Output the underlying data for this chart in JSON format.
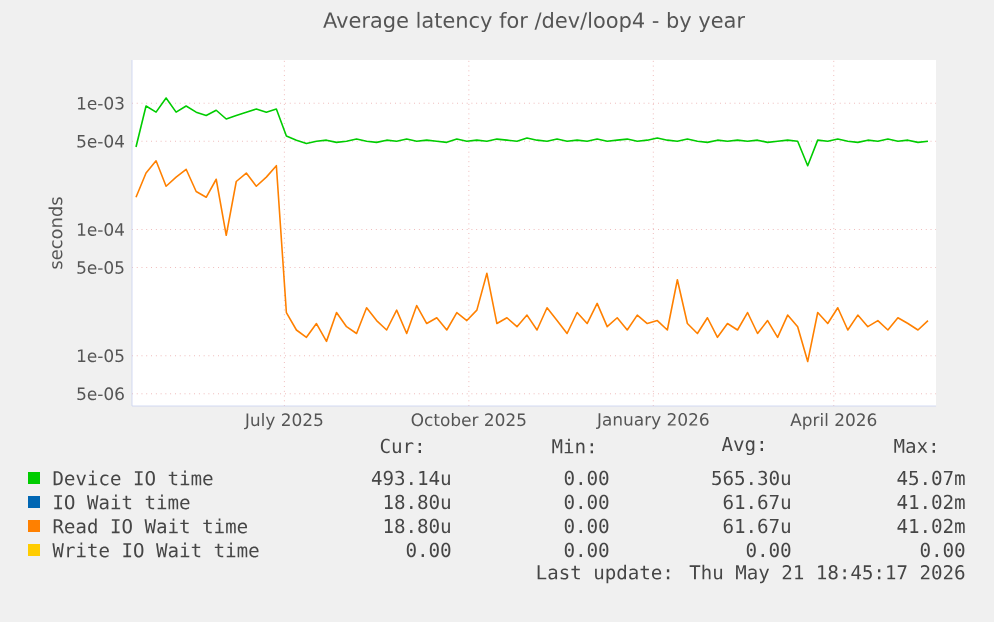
{
  "chart_data": {
    "type": "line",
    "title": "Average latency for /dev/loop4 - by year",
    "ylabel": "seconds",
    "log": "y",
    "grid": true,
    "legend": "bottom",
    "marker": "none",
    "line_style": "solid",
    "xlim": [
      "2025-04-16",
      "2026-05-22"
    ],
    "ylim": [
      4e-06,
      0.0022
    ],
    "xticks": [
      {
        "value": "2025-07-01",
        "label": "July 2025"
      },
      {
        "value": "2025-10-01",
        "label": "October 2025"
      },
      {
        "value": "2026-01-01",
        "label": "January 2026"
      },
      {
        "value": "2026-04-01",
        "label": "April 2026"
      }
    ],
    "yticks": [
      {
        "value": 5e-06,
        "label": "5e-06"
      },
      {
        "value": 1e-05,
        "label": "1e-05"
      },
      {
        "value": 5e-05,
        "label": "5e-05"
      },
      {
        "value": 0.0001,
        "label": "1e-04"
      },
      {
        "value": 0.0005,
        "label": "5e-04"
      },
      {
        "value": 0.001,
        "label": "1e-03"
      }
    ],
    "x": [
      "2025-04-18",
      "2025-04-23",
      "2025-04-28",
      "2025-05-03",
      "2025-05-08",
      "2025-05-13",
      "2025-05-18",
      "2025-05-23",
      "2025-05-28",
      "2025-06-02",
      "2025-06-07",
      "2025-06-12",
      "2025-06-17",
      "2025-06-22",
      "2025-06-27",
      "2025-07-02",
      "2025-07-07",
      "2025-07-12",
      "2025-07-17",
      "2025-07-22",
      "2025-07-27",
      "2025-08-01",
      "2025-08-06",
      "2025-08-11",
      "2025-08-16",
      "2025-08-21",
      "2025-08-26",
      "2025-08-31",
      "2025-09-05",
      "2025-09-10",
      "2025-09-15",
      "2025-09-20",
      "2025-09-25",
      "2025-09-30",
      "2025-10-05",
      "2025-10-10",
      "2025-10-15",
      "2025-10-20",
      "2025-10-25",
      "2025-10-30",
      "2025-11-04",
      "2025-11-09",
      "2025-11-14",
      "2025-11-19",
      "2025-11-24",
      "2025-11-29",
      "2025-12-04",
      "2025-12-09",
      "2025-12-14",
      "2025-12-19",
      "2025-12-24",
      "2025-12-29",
      "2026-01-03",
      "2026-01-08",
      "2026-01-13",
      "2026-01-18",
      "2026-01-23",
      "2026-01-28",
      "2026-02-02",
      "2026-02-07",
      "2026-02-12",
      "2026-02-17",
      "2026-02-22",
      "2026-02-27",
      "2026-03-04",
      "2026-03-09",
      "2026-03-14",
      "2026-03-19",
      "2026-03-24",
      "2026-03-29",
      "2026-04-03",
      "2026-04-08",
      "2026-04-13",
      "2026-04-18",
      "2026-04-23",
      "2026-04-28",
      "2026-05-03",
      "2026-05-08",
      "2026-05-13",
      "2026-05-18"
    ],
    "series": [
      {
        "name": "Device IO time",
        "color": "#00cc00",
        "values": [
          0.00045,
          0.00095,
          0.00085,
          0.0011,
          0.00085,
          0.00095,
          0.00085,
          0.0008,
          0.00088,
          0.00075,
          0.0008,
          0.00085,
          0.0009,
          0.00085,
          0.0009,
          0.00055,
          0.00051,
          0.00048,
          0.0005,
          0.00051,
          0.00049,
          0.0005,
          0.00052,
          0.0005,
          0.00049,
          0.00051,
          0.0005,
          0.00052,
          0.0005,
          0.00051,
          0.0005,
          0.00049,
          0.00052,
          0.0005,
          0.00051,
          0.0005,
          0.00052,
          0.00051,
          0.0005,
          0.00053,
          0.00051,
          0.0005,
          0.00052,
          0.0005,
          0.00051,
          0.0005,
          0.00052,
          0.0005,
          0.00051,
          0.00052,
          0.0005,
          0.00051,
          0.00053,
          0.00051,
          0.0005,
          0.00052,
          0.0005,
          0.00049,
          0.00051,
          0.0005,
          0.00051,
          0.0005,
          0.00051,
          0.00049,
          0.0005,
          0.00051,
          0.0005,
          0.00032,
          0.00051,
          0.0005,
          0.00052,
          0.0005,
          0.00049,
          0.00051,
          0.0005,
          0.00052,
          0.0005,
          0.00051,
          0.00049,
          0.0005
        ]
      },
      {
        "name": "IO Wait time",
        "color": "#0066b3",
        "values": [
          null,
          null,
          null,
          null,
          null,
          null,
          null,
          null,
          null,
          null,
          null,
          null,
          null,
          null,
          null,
          null,
          null,
          null,
          null,
          null,
          null,
          null,
          null,
          null,
          null,
          null,
          null,
          null,
          null,
          null,
          null,
          null,
          null,
          null,
          null,
          null,
          null,
          null,
          null,
          null,
          null,
          null,
          null,
          null,
          null,
          null,
          null,
          null,
          null,
          null,
          null,
          null,
          null,
          null,
          null,
          null,
          null,
          null,
          null,
          null,
          null,
          null,
          null,
          null,
          null,
          null,
          null,
          null,
          null,
          null,
          null,
          null,
          null,
          null,
          null,
          null,
          null,
          null,
          null,
          null
        ]
      },
      {
        "name": "Read IO Wait time",
        "color": "#ff8000",
        "values": [
          0.00018,
          0.00028,
          0.00035,
          0.00022,
          0.00026,
          0.0003,
          0.0002,
          0.00018,
          0.00025,
          9e-05,
          0.00024,
          0.00028,
          0.00022,
          0.00026,
          0.00032,
          2.2e-05,
          1.6e-05,
          1.4e-05,
          1.8e-05,
          1.3e-05,
          2.2e-05,
          1.7e-05,
          1.5e-05,
          2.4e-05,
          1.9e-05,
          1.6e-05,
          2.3e-05,
          1.5e-05,
          2.5e-05,
          1.8e-05,
          2e-05,
          1.6e-05,
          2.2e-05,
          1.9e-05,
          2.3e-05,
          4.5e-05,
          1.8e-05,
          2e-05,
          1.7e-05,
          2.1e-05,
          1.6e-05,
          2.4e-05,
          1.9e-05,
          1.5e-05,
          2.2e-05,
          1.8e-05,
          2.6e-05,
          1.7e-05,
          2e-05,
          1.6e-05,
          2.1e-05,
          1.8e-05,
          1.9e-05,
          1.6e-05,
          4e-05,
          1.8e-05,
          1.5e-05,
          2e-05,
          1.4e-05,
          1.8e-05,
          1.6e-05,
          2.2e-05,
          1.5e-05,
          1.9e-05,
          1.4e-05,
          2.1e-05,
          1.7e-05,
          9e-06,
          2.2e-05,
          1.8e-05,
          2.4e-05,
          1.6e-05,
          2.1e-05,
          1.7e-05,
          1.9e-05,
          1.6e-05,
          2e-05,
          1.8e-05,
          1.6e-05,
          1.9e-05
        ]
      },
      {
        "name": "Write IO Wait time",
        "color": "#ffcc00",
        "values": [
          null,
          null,
          null,
          null,
          null,
          null,
          null,
          null,
          null,
          null,
          null,
          null,
          null,
          null,
          null,
          null,
          null,
          null,
          null,
          null,
          null,
          null,
          null,
          null,
          null,
          null,
          null,
          null,
          null,
          null,
          null,
          null,
          null,
          null,
          null,
          null,
          null,
          null,
          null,
          null,
          null,
          null,
          null,
          null,
          null,
          null,
          null,
          null,
          null,
          null,
          null,
          null,
          null,
          null,
          null,
          null,
          null,
          null,
          null,
          null,
          null,
          null,
          null,
          null,
          null,
          null,
          null,
          null,
          null,
          null,
          null,
          null,
          null,
          null,
          null,
          null,
          null,
          null,
          null,
          null
        ]
      }
    ],
    "annotations": [
      "Cur:",
      "Min:",
      "Avg:",
      "Max:",
      "493.14u",
      "0.00",
      "565.30u",
      "45.07m",
      "18.80u",
      "0.00",
      "61.67u",
      "41.02m",
      "18.80u",
      "0.00",
      "61.67u",
      "41.02m",
      "0.00",
      "0.00",
      "0.00",
      "0.00",
      "Last update: Thu May 21 18:45:17 2026"
    ]
  }
}
